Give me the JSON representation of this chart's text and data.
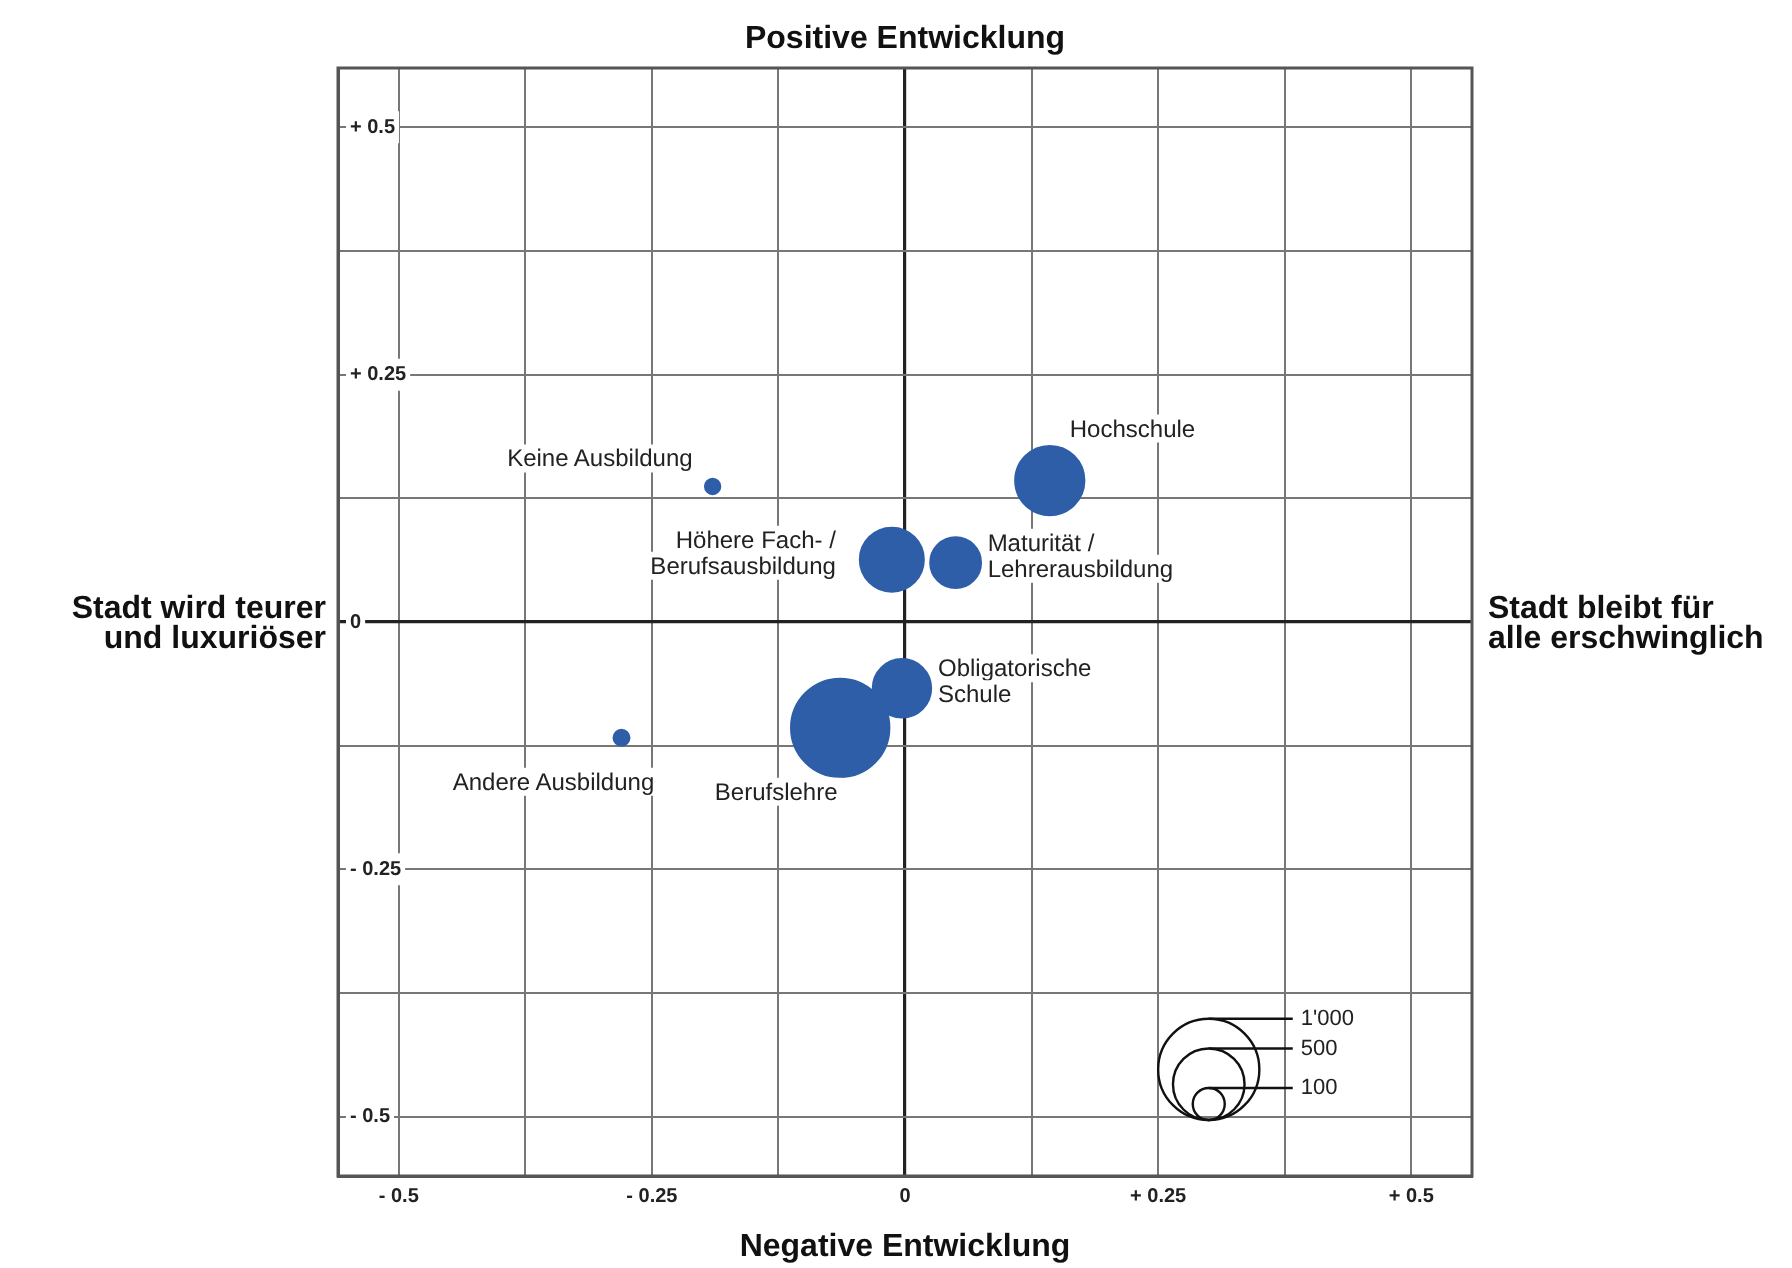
{
  "chart_data": {
    "type": "bubble",
    "title": "Positive Entwicklung",
    "xlabel": "Negative Entwicklung",
    "ylabel": "Stadt wird teurer\nund luxuriöser",
    "y2label": "Stadt bleibt für\nalle erschwinglich",
    "xlim": [
      -0.56,
      0.56
    ],
    "ylim": [
      -0.56,
      0.56
    ],
    "xticks": [
      {
        "value": -0.5,
        "label": "- 0.5"
      },
      {
        "value": -0.375,
        "label": null
      },
      {
        "value": -0.25,
        "label": "- 0.25"
      },
      {
        "value": -0.125,
        "label": null
      },
      0,
      {
        "value": 0.125,
        "label": null
      },
      {
        "value": 0.25,
        "label": "+ 0.25"
      },
      {
        "value": 0.375,
        "label": null
      },
      {
        "value": 0.5,
        "label": "+ 0.5"
      }
    ],
    "yticks": [
      {
        "value": -0.5,
        "label": "- 0.5"
      },
      {
        "value": -0.375,
        "label": null
      },
      {
        "value": -0.25,
        "label": "- 0.25"
      },
      {
        "value": -0.125,
        "label": null
      },
      0,
      {
        "value": 0.125,
        "label": null
      },
      {
        "value": 0.25,
        "label": "+ 0.25"
      },
      {
        "value": 0.375,
        "label": null
      },
      {
        "value": 0.5,
        "label": "+ 0.5"
      }
    ],
    "grid": true,
    "legend": false,
    "size_legend": [
      100,
      500,
      {
        "value": 1000,
        "label": "1'000"
      }
    ],
    "series": [
      {
        "name": "Keine Ausbildung",
        "color": "#2e5ea8",
        "x": [
          -0.19
        ],
        "values": [
          0.137
        ],
        "sizes": [
          23
        ]
      },
      {
        "name": "Hochschule",
        "color": "#2e5ea8",
        "x": [
          0.143
        ],
        "values": [
          0.143
        ],
        "sizes": [
          468
        ]
      },
      {
        "name": "Höhere Fach- /\nBerufsausbildung",
        "color": "#2e5ea8",
        "x": [
          -0.013
        ],
        "values": [
          0.063
        ],
        "sizes": [
          400
        ]
      },
      {
        "name": "Maturität /\nLehrerausbildung",
        "color": "#2e5ea8",
        "x": [
          0.05
        ],
        "values": [
          0.06
        ],
        "sizes": [
          252
        ]
      },
      {
        "name": "Obligatorische\nSchule",
        "color": "#2e5ea8",
        "x": [
          -0.003
        ],
        "values": [
          -0.067
        ],
        "sizes": [
          333
        ]
      },
      {
        "name": "Berufslehre",
        "color": "#2e5ea8",
        "x": [
          -0.064
        ],
        "values": [
          -0.107
        ],
        "sizes": [
          945
        ]
      },
      {
        "name": "Andere Ausbildung",
        "color": "#2e5ea8",
        "x": [
          -0.28
        ],
        "values": [
          -0.117
        ],
        "sizes": [
          25
        ]
      }
    ]
  }
}
